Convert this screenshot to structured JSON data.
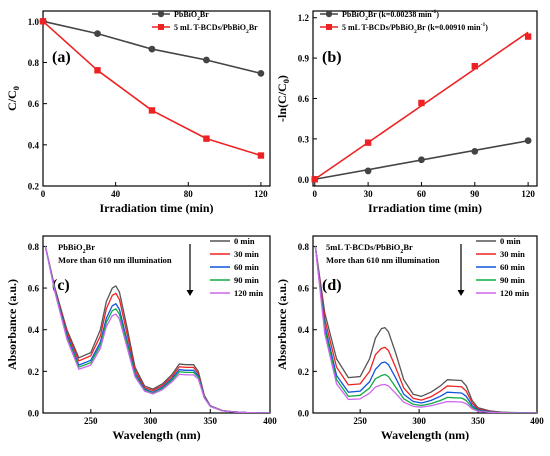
{
  "chart_data": [
    {
      "type": "line",
      "panel_label": "(a)",
      "xlabel": "Irradiation time (min)",
      "ylabel": "C/C0",
      "xlim": [
        0,
        125
      ],
      "ylim": [
        0.2,
        1.05
      ],
      "xticks": [
        "0",
        "40",
        "80",
        "120"
      ],
      "yticks": [
        "0.2",
        "0.4",
        "0.6",
        "0.8",
        "1.0"
      ],
      "legend_position": "top-right",
      "series": [
        {
          "name": "PbBiO2Br",
          "color": "#444444",
          "marker": "circle",
          "x": [
            0,
            30,
            60,
            90,
            120
          ],
          "y": [
            1.0,
            0.94,
            0.865,
            0.812,
            0.747
          ]
        },
        {
          "name": "5 mL T-BCDs/PbBiO2Br",
          "color": "#ee2222",
          "marker": "square",
          "x": [
            0,
            30,
            60,
            90,
            120
          ],
          "y": [
            1.0,
            0.762,
            0.567,
            0.43,
            0.348
          ]
        }
      ]
    },
    {
      "type": "line",
      "panel_label": "(b)",
      "xlabel": "Irradiation time (min)",
      "ylabel": "-ln(C/C0)",
      "xlim": [
        -1,
        125
      ],
      "ylim": [
        -0.05,
        1.25
      ],
      "xticks": [
        "0",
        "30",
        "60",
        "90",
        "120"
      ],
      "yticks": [
        "0.0",
        "0.3",
        "0.6",
        "0.9",
        "1.2"
      ],
      "legend_position": "top-left",
      "series": [
        {
          "name": "PbBiO2Br (k=0.00238 min-1)",
          "color": "#444444",
          "marker": "circle",
          "x": [
            0,
            30,
            60,
            90,
            120
          ],
          "y": [
            0.0,
            0.062,
            0.145,
            0.207,
            0.287
          ],
          "fit": [
            [
              0,
              0.0
            ],
            [
              120,
              0.286
            ]
          ]
        },
        {
          "name": "5 mL T-BCDs/PbBiO2Br (k=0.00910 min-1)",
          "color": "#ee2222",
          "marker": "square",
          "x": [
            0,
            30,
            60,
            90,
            120
          ],
          "y": [
            0.0,
            0.272,
            0.567,
            0.84,
            1.06
          ],
          "fit": [
            [
              0,
              0.0
            ],
            [
              120,
              1.092
            ]
          ]
        }
      ]
    },
    {
      "type": "line",
      "panel_label": "(c)",
      "xlabel": "Wavelength (nm)",
      "ylabel": "Absorbance (a.u.)",
      "xlim": [
        210,
        400
      ],
      "ylim": [
        0.0,
        0.85
      ],
      "xticks": [
        "250",
        "300",
        "350",
        "400"
      ],
      "yticks": [
        "0.0",
        "0.2",
        "0.4",
        "0.6",
        "0.8"
      ],
      "annotation": [
        "PbBiO2Br",
        "More than 610 nm illumination"
      ],
      "legend_position": "top-right",
      "series": [
        {
          "name": "0 min",
          "color": "#555555",
          "x": [
            212,
            220,
            230,
            240,
            250,
            258,
            263,
            268,
            271,
            274,
            280,
            287,
            295,
            302,
            310,
            318,
            324,
            330,
            336,
            340,
            345,
            350,
            360,
            370,
            380,
            400
          ],
          "y": [
            0.8,
            0.6,
            0.4,
            0.265,
            0.29,
            0.4,
            0.535,
            0.6,
            0.61,
            0.58,
            0.42,
            0.22,
            0.13,
            0.115,
            0.14,
            0.185,
            0.235,
            0.232,
            0.232,
            0.2,
            0.085,
            0.035,
            0.012,
            0.005,
            0.002,
            0.0
          ]
        },
        {
          "name": "30 min",
          "color": "#ee2222",
          "x": [
            212,
            220,
            230,
            240,
            250,
            258,
            263,
            268,
            271,
            274,
            280,
            287,
            295,
            302,
            310,
            318,
            324,
            330,
            336,
            340,
            345,
            350,
            360,
            370,
            380,
            400
          ],
          "y": [
            0.8,
            0.595,
            0.39,
            0.25,
            0.275,
            0.37,
            0.5,
            0.565,
            0.575,
            0.545,
            0.39,
            0.205,
            0.122,
            0.108,
            0.132,
            0.175,
            0.222,
            0.219,
            0.219,
            0.19,
            0.082,
            0.034,
            0.012,
            0.005,
            0.002,
            0.0
          ]
        },
        {
          "name": "60 min",
          "color": "#1155dd",
          "x": [
            212,
            220,
            230,
            240,
            250,
            258,
            263,
            268,
            271,
            274,
            280,
            287,
            295,
            302,
            310,
            318,
            324,
            330,
            336,
            340,
            345,
            350,
            360,
            370,
            380,
            400
          ],
          "y": [
            0.8,
            0.59,
            0.375,
            0.23,
            0.253,
            0.34,
            0.455,
            0.515,
            0.525,
            0.497,
            0.355,
            0.19,
            0.115,
            0.1,
            0.124,
            0.165,
            0.208,
            0.205,
            0.205,
            0.18,
            0.078,
            0.033,
            0.011,
            0.005,
            0.002,
            0.0
          ]
        },
        {
          "name": "90 min",
          "color": "#11aa44",
          "x": [
            212,
            220,
            230,
            240,
            250,
            258,
            263,
            268,
            271,
            274,
            280,
            287,
            295,
            302,
            310,
            318,
            324,
            330,
            336,
            340,
            345,
            350,
            360,
            370,
            380,
            400
          ],
          "y": [
            0.8,
            0.585,
            0.365,
            0.22,
            0.242,
            0.325,
            0.435,
            0.492,
            0.5,
            0.474,
            0.34,
            0.182,
            0.11,
            0.096,
            0.118,
            0.158,
            0.198,
            0.195,
            0.195,
            0.172,
            0.075,
            0.032,
            0.011,
            0.005,
            0.002,
            0.0
          ]
        },
        {
          "name": "120 min",
          "color": "#cc66ee",
          "x": [
            212,
            220,
            230,
            240,
            250,
            258,
            263,
            268,
            271,
            274,
            280,
            287,
            295,
            302,
            310,
            318,
            324,
            330,
            336,
            340,
            345,
            350,
            360,
            370,
            380,
            400
          ],
          "y": [
            0.8,
            0.58,
            0.355,
            0.21,
            0.23,
            0.31,
            0.415,
            0.468,
            0.475,
            0.45,
            0.323,
            0.174,
            0.105,
            0.092,
            0.112,
            0.15,
            0.186,
            0.183,
            0.183,
            0.163,
            0.072,
            0.031,
            0.011,
            0.005,
            0.002,
            0.0
          ]
        }
      ]
    },
    {
      "type": "line",
      "panel_label": "(d)",
      "xlabel": "Wavelength (nm)",
      "ylabel": "Absorbance (a.u.)",
      "xlim": [
        210,
        400
      ],
      "ylim": [
        0.0,
        0.85
      ],
      "xticks": [
        "250",
        "300",
        "350",
        "400"
      ],
      "yticks": [
        "0.0",
        "0.2",
        "0.4",
        "0.6",
        "0.8"
      ],
      "annotation": [
        "5mL T-BCDs/PbBiO2Br",
        "More than 610 nm illumination"
      ],
      "legend_position": "top-right",
      "series": [
        {
          "name": "0 min",
          "color": "#555555",
          "x": [
            212,
            220,
            230,
            240,
            250,
            258,
            263,
            268,
            271,
            274,
            280,
            287,
            295,
            302,
            310,
            318,
            324,
            330,
            336,
            340,
            345,
            350,
            360,
            370,
            380,
            400
          ],
          "y": [
            0.8,
            0.48,
            0.26,
            0.17,
            0.175,
            0.26,
            0.36,
            0.405,
            0.41,
            0.39,
            0.29,
            0.16,
            0.09,
            0.08,
            0.1,
            0.13,
            0.16,
            0.158,
            0.156,
            0.13,
            0.06,
            0.025,
            0.01,
            0.004,
            0.002,
            0.0
          ]
        },
        {
          "name": "30 min",
          "color": "#ee2222",
          "x": [
            212,
            220,
            230,
            240,
            250,
            258,
            263,
            268,
            271,
            274,
            280,
            287,
            295,
            302,
            310,
            318,
            324,
            330,
            336,
            340,
            345,
            350,
            360,
            370,
            380,
            400
          ],
          "y": [
            0.8,
            0.45,
            0.22,
            0.135,
            0.14,
            0.2,
            0.28,
            0.31,
            0.315,
            0.3,
            0.22,
            0.12,
            0.07,
            0.062,
            0.078,
            0.105,
            0.13,
            0.128,
            0.126,
            0.105,
            0.048,
            0.02,
            0.008,
            0.003,
            0.001,
            0.0
          ]
        },
        {
          "name": "60 min",
          "color": "#1155dd",
          "x": [
            212,
            220,
            230,
            240,
            250,
            258,
            263,
            268,
            271,
            274,
            280,
            287,
            295,
            302,
            310,
            318,
            324,
            330,
            336,
            340,
            345,
            350,
            360,
            370,
            380,
            400
          ],
          "y": [
            0.8,
            0.42,
            0.18,
            0.1,
            0.105,
            0.15,
            0.21,
            0.24,
            0.245,
            0.232,
            0.17,
            0.09,
            0.055,
            0.048,
            0.06,
            0.08,
            0.1,
            0.098,
            0.096,
            0.08,
            0.036,
            0.015,
            0.006,
            0.002,
            0.001,
            0.0
          ]
        },
        {
          "name": "90 min",
          "color": "#11aa44",
          "x": [
            212,
            220,
            230,
            240,
            250,
            258,
            263,
            268,
            271,
            274,
            280,
            287,
            295,
            302,
            310,
            318,
            324,
            330,
            336,
            340,
            345,
            350,
            360,
            370,
            380,
            400
          ],
          "y": [
            0.8,
            0.4,
            0.16,
            0.08,
            0.085,
            0.12,
            0.165,
            0.18,
            0.185,
            0.175,
            0.125,
            0.068,
            0.042,
            0.036,
            0.045,
            0.06,
            0.075,
            0.073,
            0.072,
            0.06,
            0.027,
            0.011,
            0.004,
            0.002,
            0.001,
            0.0
          ]
        },
        {
          "name": "120 min",
          "color": "#cc66ee",
          "x": [
            212,
            220,
            230,
            240,
            250,
            258,
            263,
            268,
            271,
            274,
            280,
            287,
            295,
            302,
            310,
            318,
            324,
            330,
            336,
            340,
            345,
            350,
            360,
            370,
            380,
            400
          ],
          "y": [
            0.8,
            0.38,
            0.14,
            0.065,
            0.068,
            0.095,
            0.125,
            0.135,
            0.137,
            0.13,
            0.095,
            0.052,
            0.032,
            0.028,
            0.035,
            0.046,
            0.055,
            0.054,
            0.053,
            0.045,
            0.02,
            0.008,
            0.003,
            0.001,
            0.0,
            0.0
          ]
        }
      ]
    }
  ]
}
